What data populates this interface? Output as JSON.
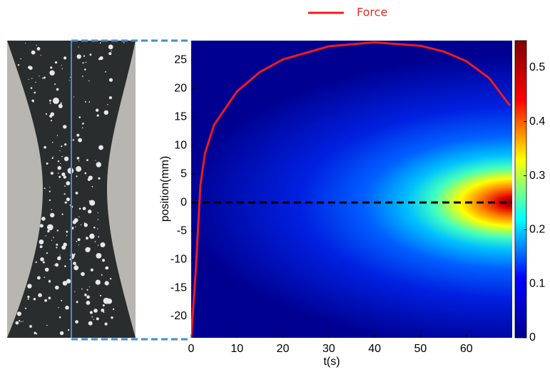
{
  "chart_data": {
    "type": "heatmap",
    "xlabel": "t(s)",
    "ylabel": "position(mm)",
    "xlim": [
      0,
      70
    ],
    "ylim": [
      -23.75,
      28.4
    ],
    "xticks": [
      0,
      10,
      20,
      30,
      40,
      50,
      60
    ],
    "yticks": [
      -20,
      -15,
      -10,
      -5,
      0,
      5,
      10,
      15,
      20,
      25
    ],
    "colormap": "jet",
    "clim": [
      0,
      0.55
    ],
    "cticks": [
      0,
      0.1,
      0.2,
      0.3,
      0.4,
      0.5
    ],
    "hline": {
      "y": 0,
      "color": "#000000"
    },
    "series": [
      {
        "name": "Force",
        "color": "#ee1c1c",
        "x": [
          0,
          1,
          2,
          3,
          5,
          10,
          15,
          20,
          30,
          40,
          50,
          55,
          60,
          65,
          69.5
        ],
        "values": [
          -23.7,
          -12,
          3,
          8.6,
          13.6,
          19.5,
          22.9,
          25.1,
          27.4,
          28.1,
          27.5,
          26.5,
          24.8,
          21.8,
          17
        ]
      }
    ]
  }
}
